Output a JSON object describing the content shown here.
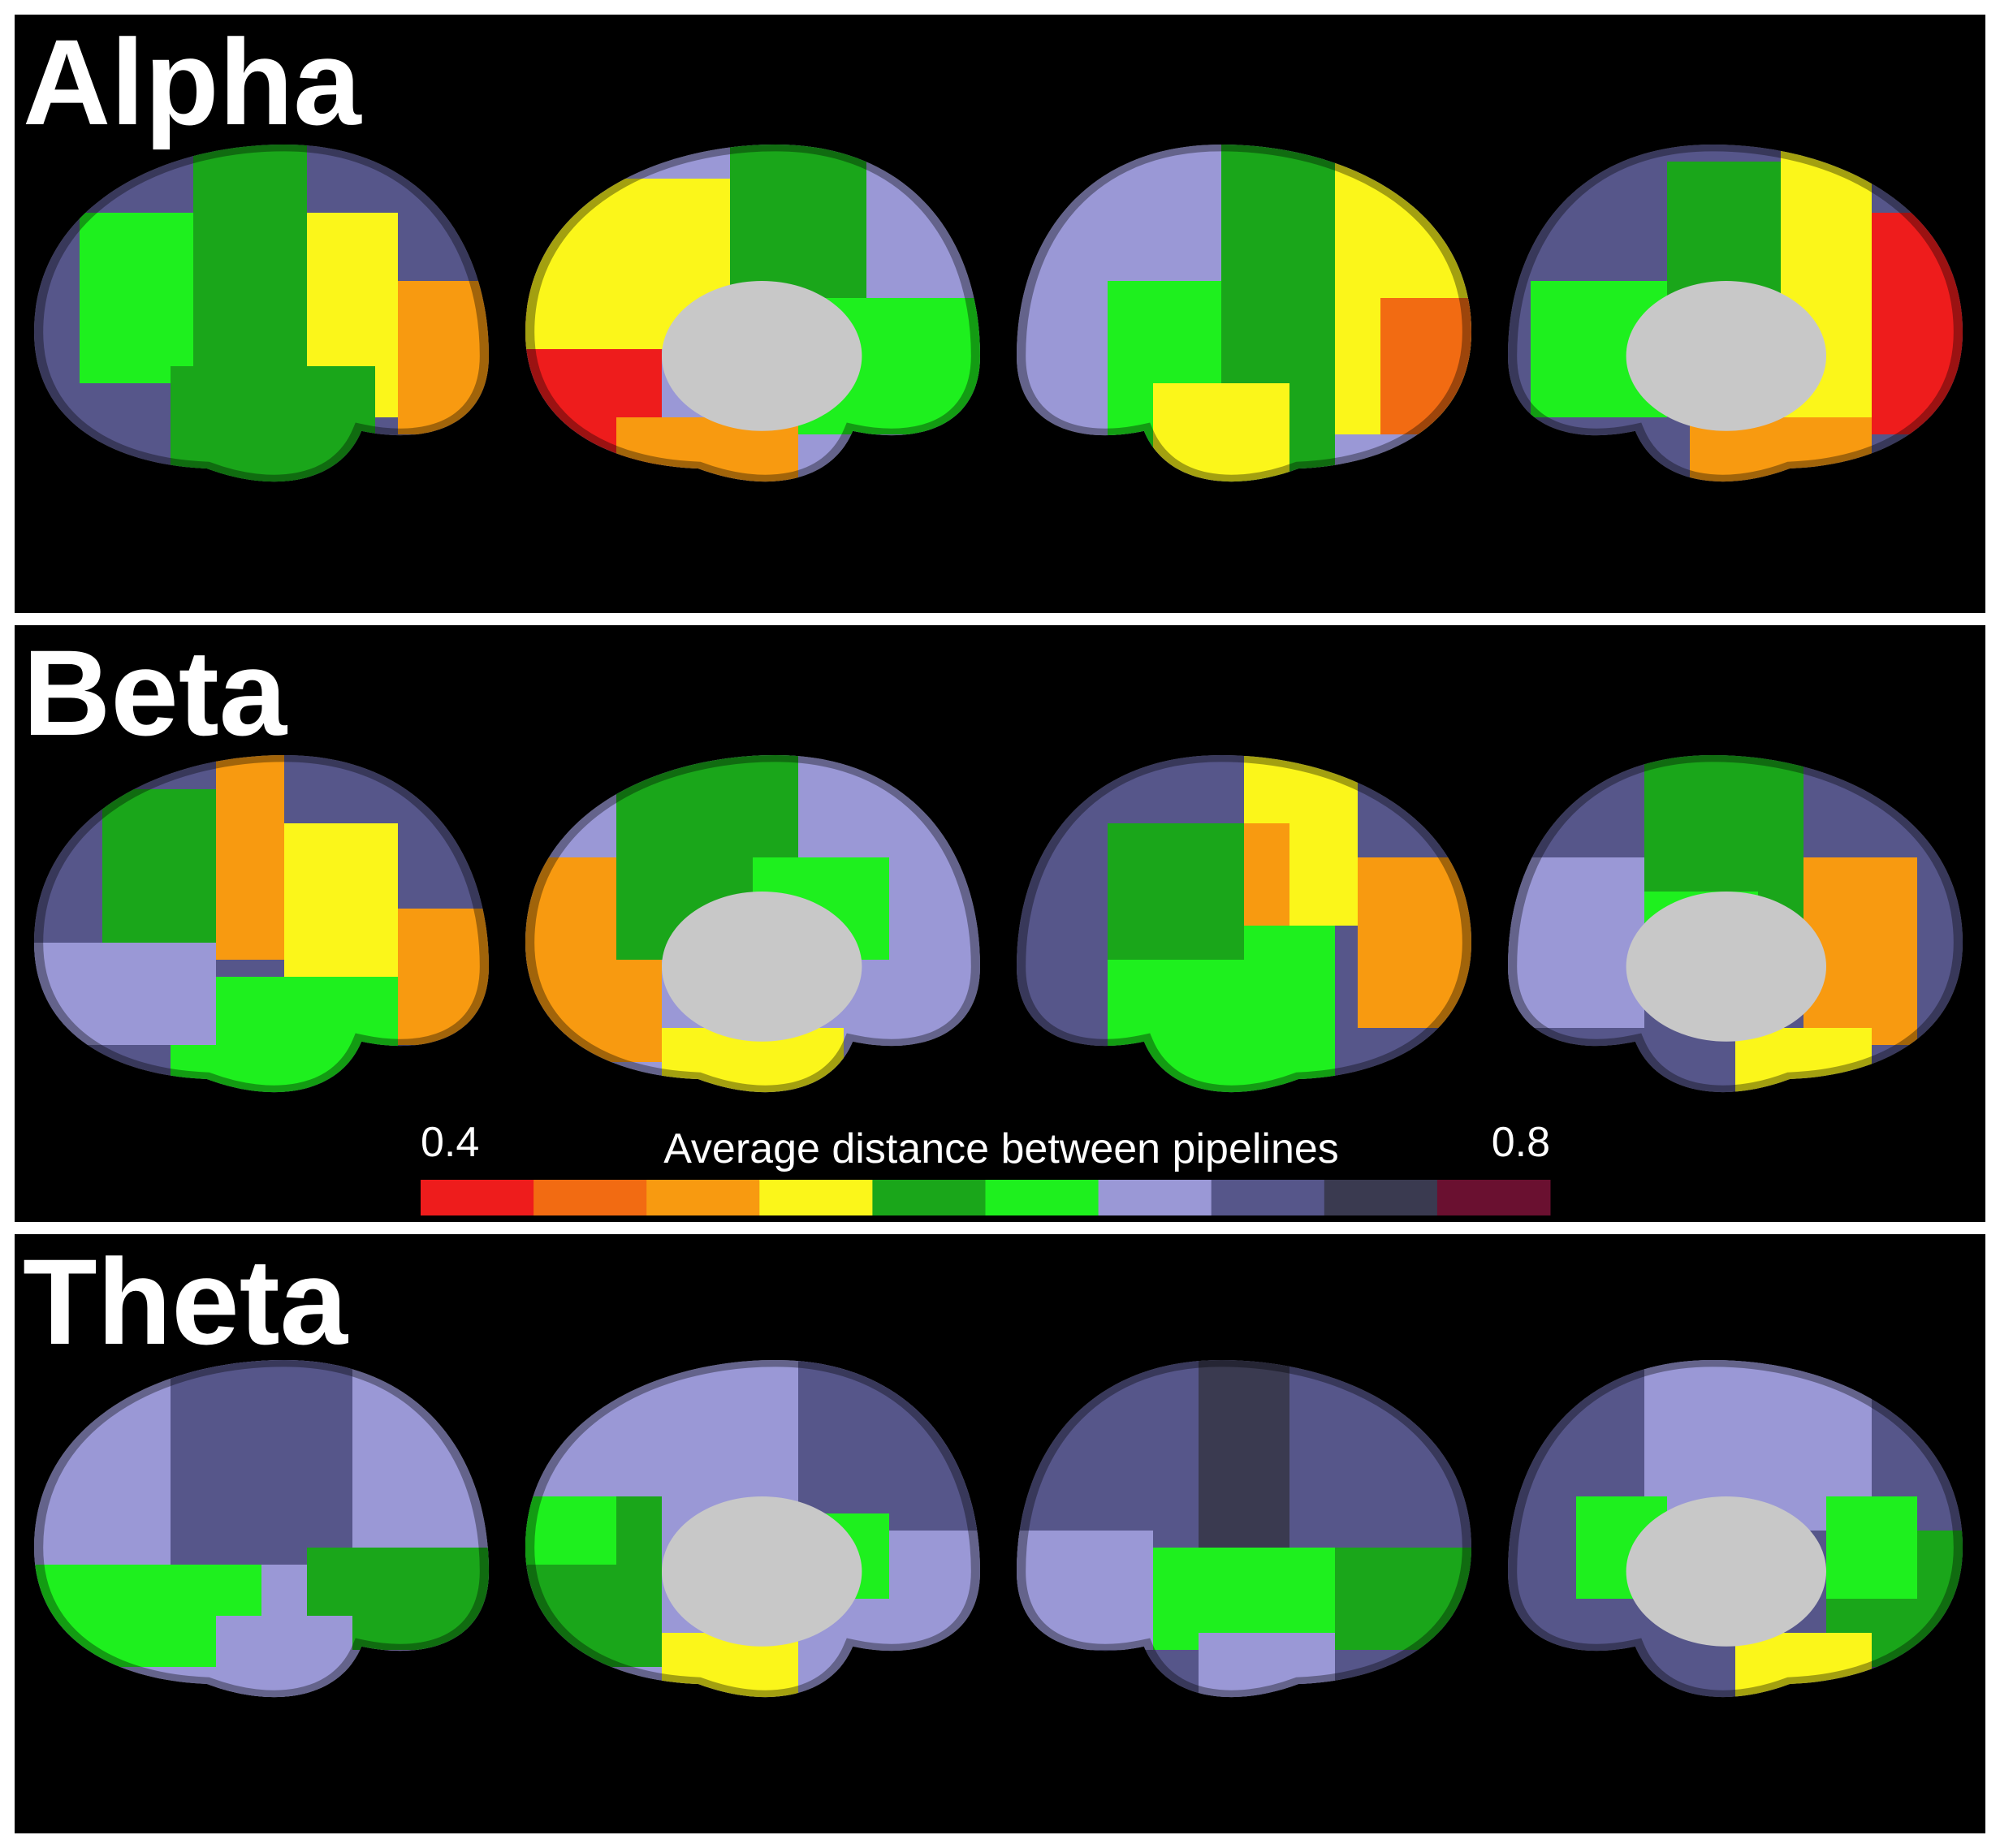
{
  "panels": [
    {
      "title": "Alpha"
    },
    {
      "title": "Beta"
    },
    {
      "title": "Theta"
    }
  ],
  "colorbar": {
    "label": "Average distance between pipelines",
    "min": 0.4,
    "max": 0.8,
    "colors": [
      "#ee1c1c",
      "#f26b12",
      "#f89a10",
      "#fbf61a",
      "#1aa61a",
      "#1ef01e",
      "#9a98d6",
      "#56568a",
      "#3a3a50",
      "#6a1030"
    ]
  }
}
